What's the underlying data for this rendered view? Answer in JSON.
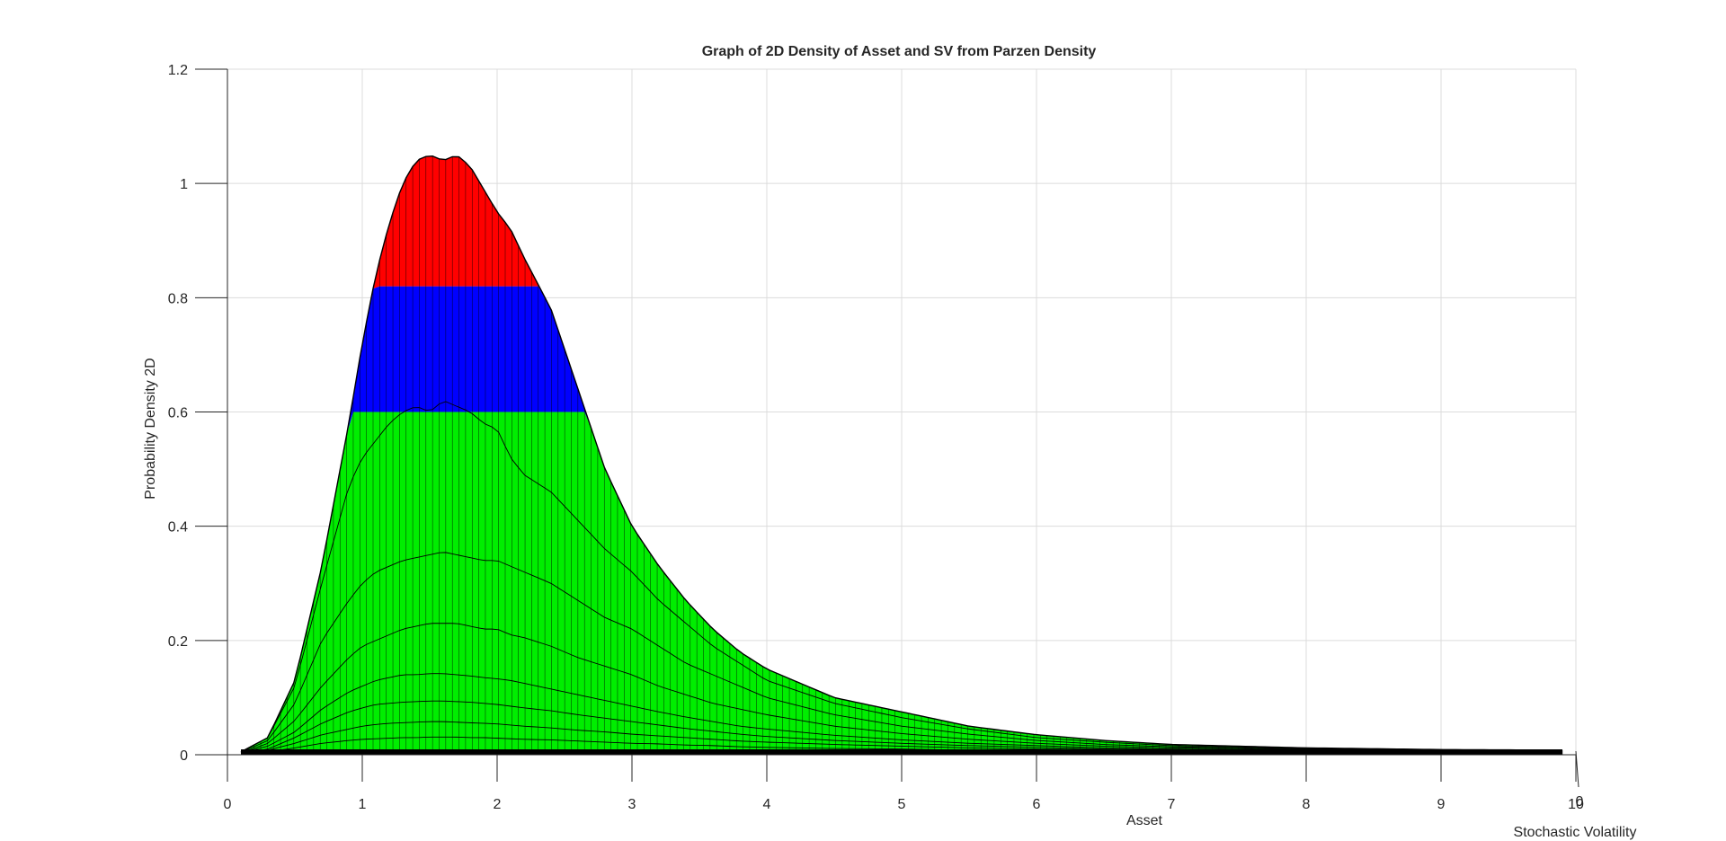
{
  "chart_data": {
    "type": "surface",
    "title": "Graph of 2D Density of Asset and SV from Parzen Density",
    "xlabel": "Asset",
    "ylabel": "Stochastic Volatility",
    "zlabel": "Probability Density 2D",
    "x_ticks": [
      "0",
      "1",
      "2",
      "3",
      "4",
      "5",
      "6",
      "7",
      "8",
      "9",
      "10"
    ],
    "z_ticks": [
      "0",
      "0.2",
      "0.4",
      "0.6",
      "0.8",
      "1",
      "1.2"
    ],
    "y_tick_visible": "0",
    "xlim": [
      0,
      10
    ],
    "zlim": [
      0,
      1.2
    ],
    "grid": true,
    "color_bands": [
      {
        "color": "#00ee00",
        "from": 0.0,
        "to": 0.6
      },
      {
        "color": "#0000ff",
        "from": 0.6,
        "to": 0.82
      },
      {
        "color": "#ff0000",
        "from": 0.82,
        "to": 1.06
      }
    ],
    "envelope": {
      "x": [
        0.1,
        0.3,
        0.5,
        0.7,
        0.9,
        1.0,
        1.1,
        1.2,
        1.3,
        1.4,
        1.5,
        1.6,
        1.7,
        1.8,
        1.9,
        2.0,
        2.1,
        2.2,
        2.4,
        2.6,
        2.8,
        3.0,
        3.2,
        3.4,
        3.6,
        3.8,
        4.0,
        4.5,
        5.0,
        5.5,
        6.0,
        6.5,
        7.0,
        8.0,
        9.0,
        9.9
      ],
      "z": [
        0.005,
        0.03,
        0.13,
        0.33,
        0.58,
        0.72,
        0.84,
        0.93,
        1.0,
        1.04,
        1.05,
        1.04,
        1.05,
        1.03,
        0.99,
        0.95,
        0.92,
        0.87,
        0.78,
        0.64,
        0.5,
        0.4,
        0.33,
        0.27,
        0.22,
        0.18,
        0.15,
        0.1,
        0.075,
        0.05,
        0.035,
        0.025,
        0.018,
        0.012,
        0.009,
        0.008
      ]
    },
    "contour_lines": [
      {
        "level": 0.6,
        "z": [
          0.005,
          0.03,
          0.12,
          0.3,
          0.47,
          0.52,
          0.55,
          0.58,
          0.6,
          0.61,
          0.6,
          0.62,
          0.61,
          0.6,
          0.58,
          0.57,
          0.52,
          0.49,
          0.46,
          0.41,
          0.36,
          0.32,
          0.27,
          0.23,
          0.19,
          0.16,
          0.13,
          0.09,
          0.065,
          0.045,
          0.03,
          0.022,
          0.016,
          0.011,
          0.008,
          0.007
        ]
      },
      {
        "level": 0.35,
        "z": [
          0.004,
          0.025,
          0.09,
          0.2,
          0.27,
          0.3,
          0.32,
          0.33,
          0.34,
          0.345,
          0.35,
          0.355,
          0.35,
          0.345,
          0.34,
          0.34,
          0.33,
          0.32,
          0.3,
          0.27,
          0.24,
          0.22,
          0.19,
          0.16,
          0.14,
          0.12,
          0.1,
          0.07,
          0.05,
          0.036,
          0.025,
          0.018,
          0.014,
          0.01,
          0.008,
          0.006
        ]
      },
      {
        "level": 0.2,
        "z": [
          0.003,
          0.02,
          0.06,
          0.12,
          0.17,
          0.19,
          0.2,
          0.21,
          0.22,
          0.225,
          0.23,
          0.23,
          0.23,
          0.225,
          0.22,
          0.22,
          0.21,
          0.205,
          0.19,
          0.17,
          0.155,
          0.14,
          0.12,
          0.105,
          0.09,
          0.08,
          0.07,
          0.05,
          0.037,
          0.027,
          0.02,
          0.015,
          0.012,
          0.009,
          0.007,
          0.006
        ]
      },
      {
        "level": 0.14,
        "z": [
          0.003,
          0.015,
          0.04,
          0.08,
          0.11,
          0.12,
          0.13,
          0.135,
          0.14,
          0.14,
          0.142,
          0.142,
          0.14,
          0.138,
          0.135,
          0.133,
          0.13,
          0.125,
          0.115,
          0.105,
          0.095,
          0.085,
          0.075,
          0.066,
          0.058,
          0.05,
          0.045,
          0.034,
          0.026,
          0.02,
          0.016,
          0.012,
          0.01,
          0.008,
          0.006,
          0.005
        ]
      },
      {
        "level": 0.09,
        "z": [
          0.002,
          0.01,
          0.03,
          0.055,
          0.075,
          0.082,
          0.088,
          0.09,
          0.092,
          0.093,
          0.094,
          0.094,
          0.093,
          0.092,
          0.09,
          0.088,
          0.085,
          0.082,
          0.077,
          0.07,
          0.064,
          0.058,
          0.052,
          0.046,
          0.041,
          0.036,
          0.032,
          0.025,
          0.02,
          0.016,
          0.013,
          0.01,
          0.009,
          0.007,
          0.006,
          0.005
        ]
      },
      {
        "level": 0.05,
        "z": [
          0.002,
          0.008,
          0.02,
          0.035,
          0.045,
          0.05,
          0.053,
          0.055,
          0.056,
          0.057,
          0.058,
          0.058,
          0.057,
          0.056,
          0.055,
          0.054,
          0.052,
          0.05,
          0.047,
          0.043,
          0.04,
          0.036,
          0.033,
          0.03,
          0.027,
          0.024,
          0.022,
          0.018,
          0.015,
          0.012,
          0.01,
          0.009,
          0.008,
          0.006,
          0.005,
          0.004
        ]
      },
      {
        "level": 0.025,
        "z": [
          0.001,
          0.005,
          0.012,
          0.02,
          0.025,
          0.027,
          0.028,
          0.029,
          0.03,
          0.03,
          0.031,
          0.031,
          0.031,
          0.03,
          0.03,
          0.029,
          0.028,
          0.027,
          0.026,
          0.024,
          0.022,
          0.02,
          0.019,
          0.017,
          0.016,
          0.014,
          0.013,
          0.011,
          0.01,
          0.008,
          0.007,
          0.006,
          0.006,
          0.005,
          0.004,
          0.004
        ]
      }
    ]
  }
}
